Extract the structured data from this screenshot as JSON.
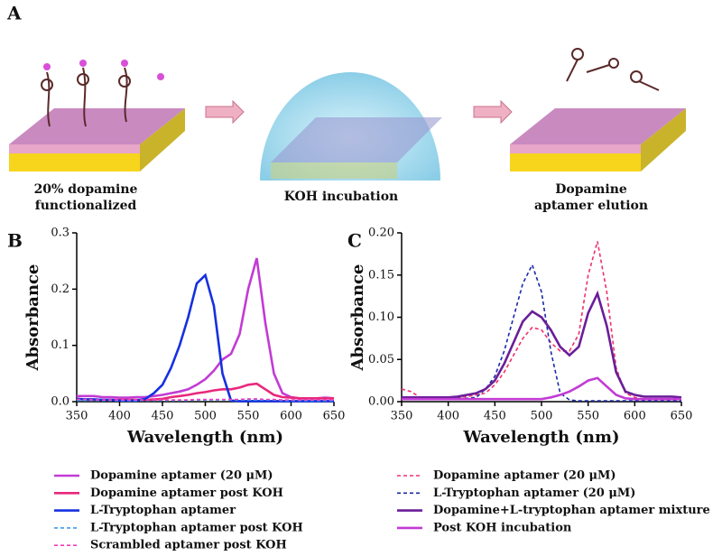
{
  "diagram": {
    "panel_label": "A",
    "steps": [
      {
        "label": [
          "20% dopamine",
          "functionalized"
        ]
      },
      {
        "label": [
          "KOH incubation"
        ]
      },
      {
        "label": [
          "Dopamine",
          "aptamer elution"
        ]
      }
    ]
  },
  "chart_data": [
    {
      "type": "line",
      "panel_label": "B",
      "x_label": "Wavelength (nm)",
      "y_label": "Absorbance",
      "x": [
        350,
        360,
        370,
        380,
        390,
        400,
        410,
        420,
        430,
        440,
        450,
        460,
        470,
        480,
        490,
        500,
        510,
        520,
        530,
        540,
        550,
        560,
        570,
        580,
        590,
        600,
        610,
        620,
        630,
        640,
        650
      ],
      "xlim": [
        350,
        650
      ],
      "xticks": [
        350,
        400,
        450,
        500,
        550,
        600,
        650
      ],
      "ylim": [
        0,
        0.3
      ],
      "yticks": [
        {
          "value": 0,
          "label": "0.0"
        },
        0.1,
        0.2,
        0.3
      ],
      "legend_position": "below",
      "series": [
        {
          "name": "Dopamine aptamer (20 μM)",
          "color": "#c23bd4",
          "dashed": false,
          "values": [
            0.01,
            0.01,
            0.01,
            0.008,
            0.008,
            0.007,
            0.007,
            0.008,
            0.008,
            0.01,
            0.012,
            0.015,
            0.018,
            0.022,
            0.03,
            0.04,
            0.055,
            0.075,
            0.085,
            0.12,
            0.2,
            0.255,
            0.14,
            0.05,
            0.015,
            0.008,
            0.006,
            0.006,
            0.006,
            0.007,
            0.006
          ]
        },
        {
          "name": "Dopamine aptamer post KOH",
          "color": "#e8287c",
          "dashed": false,
          "values": [
            0.005,
            0.004,
            0.004,
            0.003,
            0.003,
            0.003,
            0.003,
            0.003,
            0.003,
            0.004,
            0.005,
            0.008,
            0.01,
            0.012,
            0.015,
            0.017,
            0.02,
            0.022,
            0.022,
            0.025,
            0.03,
            0.032,
            0.022,
            0.012,
            0.008,
            0.007,
            0.006,
            0.006,
            0.006,
            0.006,
            0.006
          ]
        },
        {
          "name": "L-Tryptophan aptamer",
          "color": "#1630e0",
          "dashed": false,
          "values": [
            0.005,
            0.004,
            0.004,
            0.003,
            0.003,
            0.002,
            0.002,
            0.002,
            0.005,
            0.015,
            0.03,
            0.06,
            0.1,
            0.15,
            0.21,
            0.225,
            0.17,
            0.05,
            0.002,
            0.001,
            0.001,
            0.001,
            0.001,
            0.001,
            0.001,
            0.001,
            0.001,
            0.001,
            0.001,
            0.001,
            0.001
          ]
        },
        {
          "name": "L-Tryptophan aptamer post KOH",
          "color": "#3d9cf0",
          "dashed": true,
          "values": [
            0.002,
            0.002,
            0.002,
            0.002,
            0.002,
            0.002,
            0.002,
            0.002,
            0.002,
            0.002,
            0.002,
            0.002,
            0.002,
            0.002,
            0.003,
            0.003,
            0.003,
            0.003,
            0.003,
            0.003,
            0.003,
            0.003,
            0.003,
            0.003,
            0.002,
            0.002,
            0.002,
            0.002,
            0.002,
            0.002,
            0.002
          ]
        },
        {
          "name": "Scrambled aptamer post KOH",
          "color": "#f03cc0",
          "dashed": true,
          "values": [
            0.004,
            0.004,
            0.003,
            0.003,
            0.003,
            0.003,
            0.003,
            0.003,
            0.003,
            0.003,
            0.003,
            0.003,
            0.003,
            0.003,
            0.004,
            0.004,
            0.004,
            0.004,
            0.004,
            0.004,
            0.005,
            0.005,
            0.004,
            0.004,
            0.003,
            0.003,
            0.003,
            0.003,
            0.003,
            0.003,
            0.003
          ]
        }
      ]
    },
    {
      "type": "line",
      "panel_label": "C",
      "x_label": "Wavelength (nm)",
      "y_label": "Absorbance",
      "x": [
        350,
        360,
        370,
        380,
        390,
        400,
        410,
        420,
        430,
        440,
        450,
        460,
        470,
        480,
        490,
        500,
        510,
        520,
        530,
        540,
        550,
        560,
        570,
        580,
        590,
        600,
        610,
        620,
        630,
        640,
        650
      ],
      "xlim": [
        350,
        650
      ],
      "xticks": [
        350,
        400,
        450,
        500,
        550,
        600,
        650
      ],
      "ylim": [
        0,
        0.2
      ],
      "yticks": [
        {
          "value": 0,
          "label": "0.00"
        },
        {
          "value": 0.05,
          "label": "0.05"
        },
        {
          "value": 0.1,
          "label": "0.10"
        },
        {
          "value": 0.15,
          "label": "0.15"
        },
        {
          "value": 0.2,
          "label": "0.20"
        }
      ],
      "legend_position": "below",
      "series": [
        {
          "name": "Dopamine aptamer (20 μM)",
          "color": "#f0306a",
          "dashed": true,
          "values": [
            0.015,
            0.012,
            0.005,
            0.004,
            0.004,
            0.004,
            0.005,
            0.006,
            0.008,
            0.01,
            0.02,
            0.035,
            0.055,
            0.075,
            0.088,
            0.085,
            0.07,
            0.06,
            0.06,
            0.08,
            0.15,
            0.19,
            0.13,
            0.04,
            0.01,
            0.005,
            0.003,
            0.003,
            0.003,
            0.003,
            0.003
          ]
        },
        {
          "name": "L-Tryptophan aptamer (20 μM)",
          "color": "#1a2aa8",
          "dashed": true,
          "values": [
            0.005,
            0.005,
            0.004,
            0.004,
            0.004,
            0.004,
            0.004,
            0.004,
            0.005,
            0.015,
            0.03,
            0.06,
            0.1,
            0.14,
            0.162,
            0.13,
            0.06,
            0.01,
            0.002,
            0.001,
            0.001,
            0.001,
            0.001,
            0.001,
            0.001,
            0.001,
            0.001,
            0.001,
            0.001,
            0.001,
            0.001
          ]
        },
        {
          "name": "Dopamine+L-tryptophan aptamer mixture",
          "color": "#6a1e98",
          "dashed": false,
          "values": [
            0.005,
            0.005,
            0.005,
            0.005,
            0.005,
            0.005,
            0.006,
            0.008,
            0.01,
            0.015,
            0.025,
            0.045,
            0.07,
            0.095,
            0.107,
            0.1,
            0.085,
            0.065,
            0.055,
            0.065,
            0.105,
            0.128,
            0.09,
            0.035,
            0.012,
            0.008,
            0.006,
            0.006,
            0.006,
            0.006,
            0.005
          ]
        },
        {
          "name": "Post KOH incubation",
          "color": "#c23bd4",
          "dashed": false,
          "values": [
            0.003,
            0.003,
            0.003,
            0.003,
            0.003,
            0.003,
            0.003,
            0.003,
            0.003,
            0.003,
            0.003,
            0.003,
            0.003,
            0.003,
            0.003,
            0.003,
            0.005,
            0.008,
            0.012,
            0.018,
            0.025,
            0.028,
            0.018,
            0.008,
            0.004,
            0.003,
            0.003,
            0.003,
            0.003,
            0.003,
            0.003
          ]
        }
      ]
    }
  ]
}
